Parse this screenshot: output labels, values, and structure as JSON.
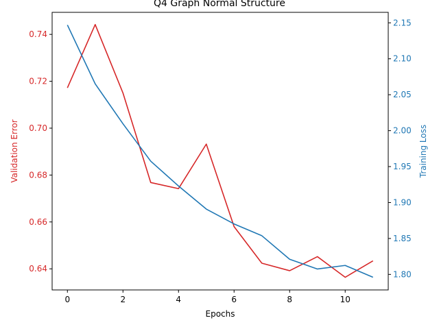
{
  "chart_data": {
    "type": "line",
    "title": "Q4 Graph Normal Structure",
    "xlabel": "Epochs",
    "x": [
      0,
      1,
      2,
      3,
      4,
      5,
      6,
      7,
      8,
      9,
      10,
      11
    ],
    "xlim": [
      -0.55,
      11.55
    ],
    "xticks": [
      "0",
      "2",
      "4",
      "6",
      "8",
      "10"
    ],
    "grid": false,
    "legend": "none",
    "left_axis": {
      "label": "Validation Error",
      "color": "#d62728",
      "ylim": [
        0.631,
        0.7494
      ],
      "ticks": [
        "0.64",
        "0.66",
        "0.68",
        "0.70",
        "0.72",
        "0.74"
      ]
    },
    "right_axis": {
      "label": "Training Loss",
      "color": "#1f77b4",
      "ylim": [
        1.7784,
        2.1646
      ],
      "ticks": [
        "1.80",
        "1.85",
        "1.90",
        "1.95",
        "2.00",
        "2.05",
        "2.10",
        "2.15"
      ]
    },
    "series": [
      {
        "axis": "left",
        "color": "#d62728",
        "values": [
          0.7172,
          0.7442,
          0.715,
          0.6768,
          0.6742,
          0.6932,
          0.658,
          0.6424,
          0.6392,
          0.6452,
          0.6364,
          0.6434
        ]
      },
      {
        "axis": "right",
        "color": "#1f77b4",
        "values": [
          2.147,
          2.0651,
          2.0096,
          1.9575,
          1.923,
          1.8909,
          1.8702,
          1.8538,
          1.8211,
          1.8075,
          1.8125,
          1.796
        ]
      }
    ]
  }
}
